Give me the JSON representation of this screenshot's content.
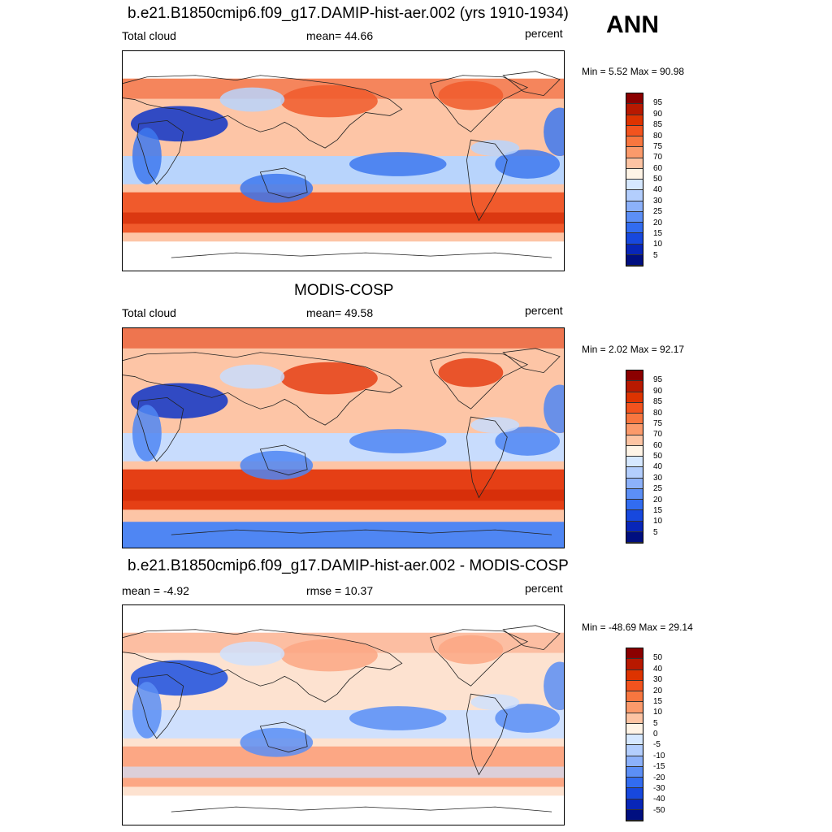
{
  "season": "ANN",
  "panels": [
    {
      "title": "b.e21.B1850cmip6.f09_g17.DAMIP-hist-aer.002 (yrs 1910-1934)",
      "left_label": "Total cloud",
      "center_label": "mean=  44.66",
      "units": "percent",
      "minmax": "Min =   5.52 Max =  90.98",
      "colorbar_labels": [
        "95",
        "90",
        "85",
        "80",
        "75",
        "70",
        "60",
        "50",
        "40",
        "30",
        "25",
        "20",
        "15",
        "10",
        "5"
      ],
      "colorbar_colors": [
        "#8b0000",
        "#b81900",
        "#dd3300",
        "#f2531e",
        "#f8763f",
        "#fb9a6b",
        "#fdc4a3",
        "#fff4e6",
        "#d6e8ff",
        "#b3cefd",
        "#8cb1fa",
        "#5c8ff6",
        "#326cf0",
        "#1748de",
        "#0826b8",
        "#000f80"
      ],
      "map_colors": [
        "#f05a2c",
        "#fdc5a6",
        "#b8d4fc",
        "#3d78ee",
        "#0d34c8"
      ]
    },
    {
      "title": "MODIS-COSP",
      "left_label": "Total cloud",
      "center_label": "mean=  49.58",
      "units": "percent",
      "minmax": "Min =   2.02 Max =  92.17",
      "colorbar_labels": [
        "95",
        "90",
        "85",
        "80",
        "75",
        "70",
        "60",
        "50",
        "40",
        "30",
        "25",
        "20",
        "15",
        "10",
        "5"
      ],
      "colorbar_colors": [
        "#8b0000",
        "#b81900",
        "#dd3300",
        "#f2531e",
        "#f8763f",
        "#fb9a6b",
        "#fdc4a3",
        "#fff4e6",
        "#d6e8ff",
        "#b3cefd",
        "#8cb1fa",
        "#5c8ff6",
        "#326cf0",
        "#1748de",
        "#0826b8",
        "#000f80"
      ],
      "map_colors": [
        "#e53f15",
        "#fdc5a6",
        "#c8dcfd",
        "#4f86f3",
        "#0d34c8"
      ]
    },
    {
      "title": "b.e21.B1850cmip6.f09_g17.DAMIP-hist-aer.002 - MODIS-COSP",
      "left_label": "mean =  -4.92",
      "center_label": "rmse =  10.37",
      "units": "percent",
      "minmax": "Min = -48.69 Max =  29.14",
      "colorbar_labels": [
        "50",
        "40",
        "30",
        "20",
        "15",
        "10",
        "5",
        "0",
        "-5",
        "-10",
        "-15",
        "-20",
        "-30",
        "-40",
        "-50"
      ],
      "colorbar_colors": [
        "#8b0000",
        "#b81900",
        "#dd3300",
        "#f2531e",
        "#f8763f",
        "#fb9a6b",
        "#fdc4a3",
        "#fff4e6",
        "#d6e8ff",
        "#b3cefd",
        "#8cb1fa",
        "#5c8ff6",
        "#326cf0",
        "#1748de",
        "#0826b8",
        "#000f80"
      ],
      "map_colors": [
        "#fca784",
        "#fde2d0",
        "#cfe0fd",
        "#5a8ef4",
        "#1a4fe0"
      ]
    }
  ]
}
